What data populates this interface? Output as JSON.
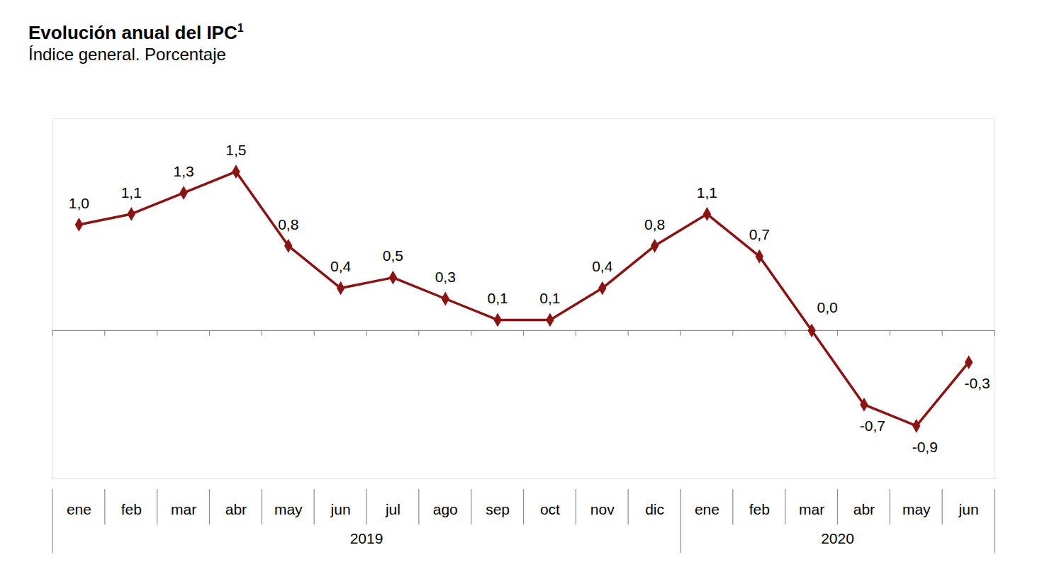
{
  "chart_data": {
    "type": "line",
    "title": "Evolución anual del IPC",
    "title_superscript": "1",
    "subtitle": "Índice general. Porcentaje",
    "categories": [
      "ene",
      "feb",
      "mar",
      "abr",
      "may",
      "jun",
      "jul",
      "ago",
      "sep",
      "oct",
      "nov",
      "dic",
      "ene",
      "feb",
      "mar",
      "abr",
      "may",
      "jun"
    ],
    "x_groups": [
      {
        "label": "2019",
        "count": 12
      },
      {
        "label": "2020",
        "count": 6
      }
    ],
    "values": [
      1.0,
      1.1,
      1.3,
      1.5,
      0.8,
      0.4,
      0.5,
      0.3,
      0.1,
      0.1,
      0.4,
      0.8,
      1.1,
      0.7,
      0.0,
      -0.7,
      -0.9,
      -0.3
    ],
    "value_labels": [
      "1,0",
      "1,1",
      "1,3",
      "1,5",
      "0,8",
      "0,4",
      "0,5",
      "0,3",
      "0,1",
      "0,1",
      "0,4",
      "0,8",
      "1,1",
      "0,7",
      "0,0",
      "-0,7",
      "-0,9",
      "-0,3"
    ],
    "color": "#8b1313",
    "marker": "diamond",
    "ylim": [
      -1.4,
      2.0
    ],
    "data_labels": true,
    "tick_labels": "x",
    "grid": false
  }
}
